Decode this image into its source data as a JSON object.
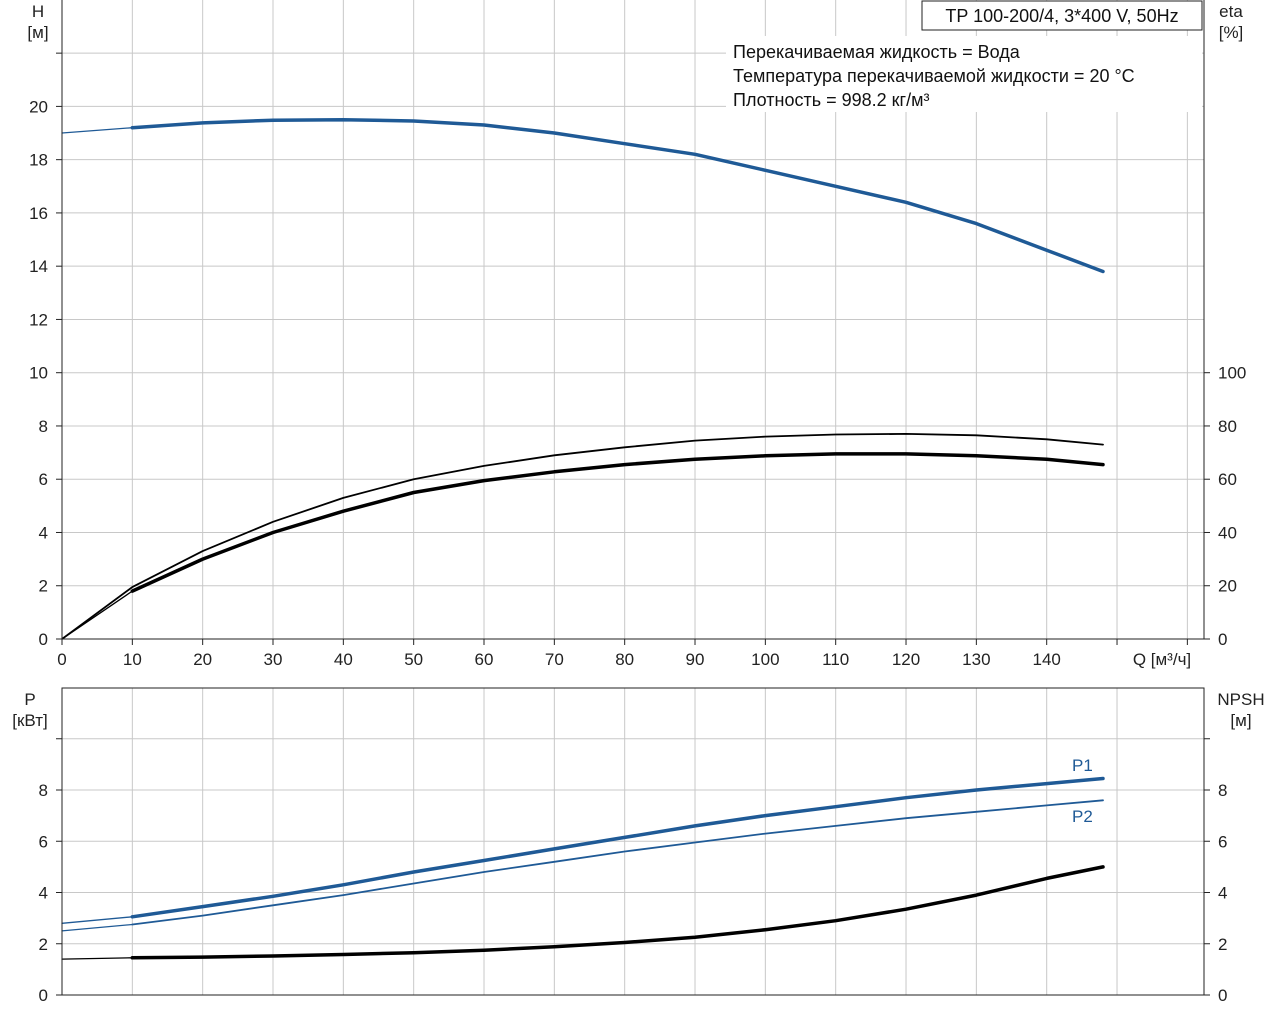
{
  "chart_data": [
    {
      "type": "line",
      "title": "TP 100-200/4, 3*400 V, 50Hz",
      "notes": [
        "Перекачиваемая жидкость = Вода",
        "Температура перекачиваемой жидкости = 20 °C",
        "Плотность = 998.2 кг/м³"
      ],
      "xlabel": "Q [м³/ч]",
      "ylabel_left": [
        "H",
        "[м]"
      ],
      "ylabel_right": [
        "eta",
        "[%]"
      ],
      "xlim": [
        0,
        160
      ],
      "ylim_left": [
        0,
        24
      ],
      "ylim_right": [
        0,
        240
      ],
      "xticks": [
        "0",
        "10",
        "20",
        "30",
        "40",
        "50",
        "60",
        "70",
        "80",
        "90",
        "100",
        "110",
        "120",
        "130",
        "140"
      ],
      "yticks_left": [
        "0",
        "2",
        "4",
        "6",
        "8",
        "10",
        "12",
        "14",
        "16",
        "18",
        "20"
      ],
      "yticks_right": [
        "0",
        "20",
        "40",
        "60",
        "80",
        "100"
      ],
      "grid": true,
      "colors": {
        "head": "#1f5a96",
        "eta": "#000000"
      },
      "series": [
        {
          "axis": "left",
          "color": "#1f5a96",
          "width": 1.3,
          "x": [
            0,
            10
          ],
          "y": [
            19.0,
            19.2
          ]
        },
        {
          "axis": "left",
          "color": "#1f5a96",
          "width": 3.5,
          "x": [
            10,
            20,
            30,
            40,
            50,
            60,
            70,
            80,
            90,
            100,
            110,
            120,
            130,
            140,
            148
          ],
          "y": [
            19.2,
            19.38,
            19.48,
            19.5,
            19.45,
            19.3,
            19.0,
            18.6,
            18.2,
            17.6,
            17.0,
            16.4,
            15.6,
            14.6,
            13.8
          ]
        },
        {
          "axis": "right",
          "color": "#000000",
          "width": 1.3,
          "x": [
            0,
            10
          ],
          "y": [
            0,
            18
          ]
        },
        {
          "axis": "right",
          "color": "#000000",
          "width": 3.5,
          "x": [
            10,
            20,
            30,
            40,
            50,
            60,
            70,
            80,
            90,
            100,
            110,
            120,
            130,
            140,
            148
          ],
          "y": [
            18,
            30,
            40,
            48,
            55,
            59.5,
            62.8,
            65.5,
            67.5,
            68.8,
            69.5,
            69.5,
            68.8,
            67.5,
            65.5
          ]
        },
        {
          "axis": "right",
          "color": "#000000",
          "width": 1.8,
          "x": [
            0,
            10,
            20,
            30,
            40,
            50,
            60,
            70,
            80,
            90,
            100,
            110,
            120,
            130,
            140,
            148
          ],
          "y": [
            0,
            19.5,
            33,
            44,
            53,
            60,
            65,
            69,
            72,
            74.5,
            76,
            76.8,
            77,
            76.5,
            75,
            73
          ]
        }
      ]
    },
    {
      "type": "line",
      "xlabel": "",
      "ylabel_left": [
        "P",
        "[кВт]"
      ],
      "ylabel_right": [
        "NPSH",
        "[м]"
      ],
      "xlim": [
        0,
        160
      ],
      "ylim_left": [
        0,
        10
      ],
      "ylim_right": [
        0,
        10
      ],
      "yticks_left": [
        "0",
        "2",
        "4",
        "6",
        "8"
      ],
      "yticks_right": [
        "0",
        "2",
        "4",
        "6",
        "8"
      ],
      "grid": true,
      "series": [
        {
          "axis": "left",
          "color": "#1f5a96",
          "width": 1.3,
          "x": [
            0,
            10
          ],
          "y": [
            2.8,
            3.05
          ]
        },
        {
          "name": "P1",
          "axis": "left",
          "color": "#1f5a96",
          "width": 3.5,
          "x": [
            10,
            20,
            30,
            40,
            50,
            60,
            70,
            80,
            90,
            100,
            110,
            120,
            130,
            140,
            148
          ],
          "y": [
            3.05,
            3.45,
            3.85,
            4.3,
            4.8,
            5.25,
            5.7,
            6.15,
            6.6,
            7.0,
            7.35,
            7.7,
            8.0,
            8.25,
            8.45
          ]
        },
        {
          "axis": "left",
          "color": "#1f5a96",
          "width": 1.3,
          "x": [
            0,
            10
          ],
          "y": [
            2.5,
            2.75
          ]
        },
        {
          "name": "P2",
          "axis": "left",
          "color": "#1f5a96",
          "width": 1.8,
          "x": [
            10,
            20,
            30,
            40,
            50,
            60,
            70,
            80,
            90,
            100,
            110,
            120,
            130,
            140,
            148
          ],
          "y": [
            2.75,
            3.1,
            3.5,
            3.9,
            4.35,
            4.8,
            5.2,
            5.6,
            5.95,
            6.3,
            6.6,
            6.9,
            7.15,
            7.4,
            7.6
          ]
        },
        {
          "axis": "right",
          "color": "#000000",
          "width": 1.3,
          "x": [
            0,
            10
          ],
          "y": [
            1.4,
            1.45
          ]
        },
        {
          "axis": "right",
          "color": "#000000",
          "width": 3.5,
          "x": [
            10,
            20,
            30,
            40,
            50,
            60,
            70,
            80,
            90,
            100,
            110,
            120,
            130,
            140,
            148
          ],
          "y": [
            1.45,
            1.48,
            1.52,
            1.58,
            1.65,
            1.75,
            1.88,
            2.05,
            2.25,
            2.55,
            2.9,
            3.35,
            3.9,
            4.55,
            5.0
          ]
        }
      ]
    }
  ]
}
